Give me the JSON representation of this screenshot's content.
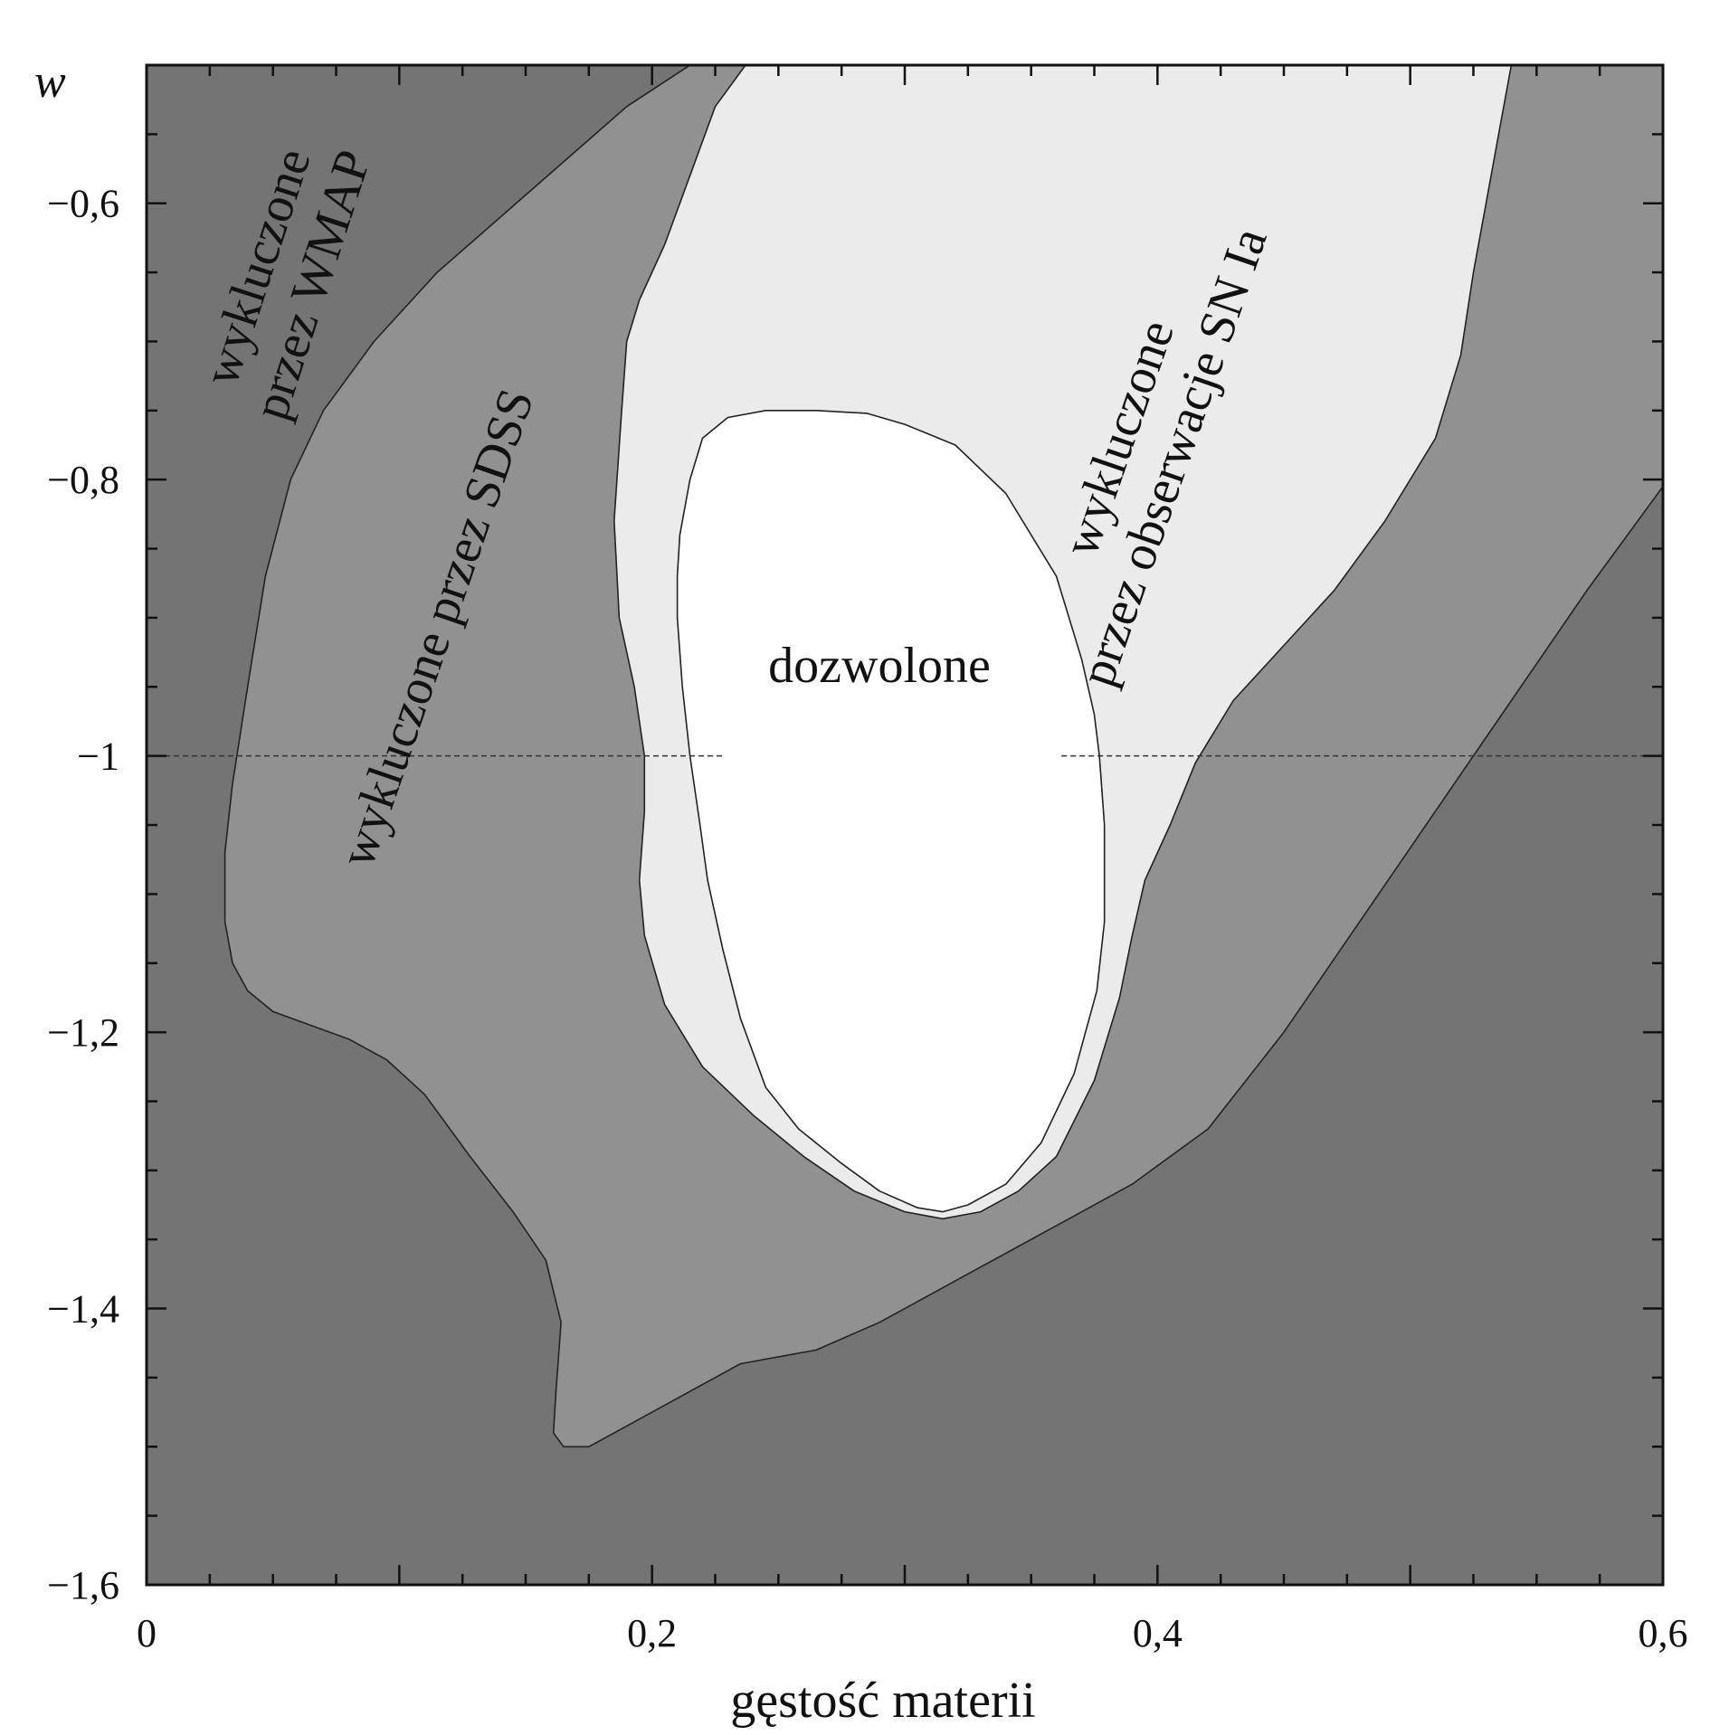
{
  "chart_data": {
    "type": "area",
    "title": "",
    "xlabel": "gęstość materii",
    "ylabel": "w",
    "xlim": [
      0,
      0.6
    ],
    "ylim": [
      -1.6,
      -0.5
    ],
    "grid": false,
    "reference_line": {
      "y": -1,
      "style": "dashed",
      "label": ""
    },
    "x_ticks": [
      {
        "value": 0,
        "label": "0"
      },
      {
        "value": 0.2,
        "label": "0,2"
      },
      {
        "value": 0.4,
        "label": "0,4"
      },
      {
        "value": 0.6,
        "label": "0,6"
      }
    ],
    "y_ticks": [
      {
        "value": -0.6,
        "label": "−0,6"
      },
      {
        "value": -0.8,
        "label": "−0,8"
      },
      {
        "value": -1.0,
        "label": "−1"
      },
      {
        "value": -1.2,
        "label": "−1,2"
      },
      {
        "value": -1.4,
        "label": "−1,4"
      },
      {
        "value": -1.6,
        "label": "−1,6"
      }
    ],
    "regions": [
      {
        "key": "sdss",
        "label": "wykluczone przez SDSS",
        "color": "#919191",
        "boundary": [
          [
            0.215,
            -0.5
          ],
          [
            0.19,
            -0.53
          ],
          [
            0.165,
            -0.57
          ],
          [
            0.14,
            -0.61
          ],
          [
            0.115,
            -0.65
          ],
          [
            0.09,
            -0.7
          ],
          [
            0.07,
            -0.75
          ],
          [
            0.057,
            -0.8
          ],
          [
            0.047,
            -0.87
          ],
          [
            0.04,
            -0.95
          ],
          [
            0.034,
            -1.02
          ],
          [
            0.031,
            -1.07
          ],
          [
            0.031,
            -1.12
          ],
          [
            0.034,
            -1.15
          ],
          [
            0.04,
            -1.17
          ],
          [
            0.05,
            -1.185
          ],
          [
            0.065,
            -1.195
          ],
          [
            0.08,
            -1.205
          ],
          [
            0.095,
            -1.22
          ],
          [
            0.11,
            -1.245
          ],
          [
            0.128,
            -1.29
          ],
          [
            0.145,
            -1.33
          ],
          [
            0.158,
            -1.365
          ],
          [
            0.164,
            -1.41
          ],
          [
            0.162,
            -1.46
          ],
          [
            0.161,
            -1.49
          ],
          [
            0.165,
            -1.5
          ],
          [
            0.175,
            -1.5
          ],
          [
            0.19,
            -1.485
          ],
          [
            0.21,
            -1.465
          ],
          [
            0.235,
            -1.44
          ],
          [
            0.265,
            -1.43
          ],
          [
            0.29,
            -1.41
          ],
          [
            0.31,
            -1.39
          ],
          [
            0.33,
            -1.37
          ],
          [
            0.36,
            -1.34
          ],
          [
            0.39,
            -1.31
          ],
          [
            0.42,
            -1.27
          ],
          [
            0.45,
            -1.2
          ],
          [
            0.48,
            -1.12
          ],
          [
            0.51,
            -1.04
          ],
          [
            0.54,
            -0.96
          ],
          [
            0.57,
            -0.88
          ],
          [
            0.6,
            -0.805
          ],
          [
            0.6,
            -0.5
          ]
        ]
      },
      {
        "key": "sn",
        "label": "wykluczone przez obserwacje SN Ia",
        "color": "#ebebeb",
        "boundary": [
          [
            0.237,
            -0.5
          ],
          [
            0.225,
            -0.53
          ],
          [
            0.215,
            -0.58
          ],
          [
            0.205,
            -0.63
          ],
          [
            0.195,
            -0.67
          ],
          [
            0.19,
            -0.7
          ],
          [
            0.188,
            -0.75
          ],
          [
            0.185,
            -0.83
          ],
          [
            0.187,
            -0.9
          ],
          [
            0.193,
            -0.95
          ],
          [
            0.197,
            -1.0
          ],
          [
            0.197,
            -1.04
          ],
          [
            0.195,
            -1.09
          ],
          [
            0.197,
            -1.13
          ],
          [
            0.205,
            -1.18
          ],
          [
            0.22,
            -1.225
          ],
          [
            0.24,
            -1.26
          ],
          [
            0.26,
            -1.29
          ],
          [
            0.28,
            -1.315
          ],
          [
            0.3,
            -1.33
          ],
          [
            0.315,
            -1.335
          ],
          [
            0.33,
            -1.33
          ],
          [
            0.345,
            -1.315
          ],
          [
            0.36,
            -1.29
          ],
          [
            0.375,
            -1.235
          ],
          [
            0.385,
            -1.175
          ],
          [
            0.39,
            -1.13
          ],
          [
            0.395,
            -1.09
          ],
          [
            0.405,
            -1.05
          ],
          [
            0.415,
            -1.005
          ],
          [
            0.43,
            -0.96
          ],
          [
            0.45,
            -0.92
          ],
          [
            0.47,
            -0.88
          ],
          [
            0.49,
            -0.83
          ],
          [
            0.51,
            -0.77
          ],
          [
            0.52,
            -0.71
          ],
          [
            0.525,
            -0.65
          ],
          [
            0.53,
            -0.6
          ],
          [
            0.535,
            -0.55
          ],
          [
            0.54,
            -0.5
          ]
        ]
      },
      {
        "key": "allowed",
        "label": "dozwolone",
        "color": "#ffffff",
        "boundary": [
          [
            0.22,
            -0.77
          ],
          [
            0.23,
            -0.755
          ],
          [
            0.245,
            -0.75
          ],
          [
            0.265,
            -0.75
          ],
          [
            0.285,
            -0.752
          ],
          [
            0.3,
            -0.76
          ],
          [
            0.32,
            -0.775
          ],
          [
            0.34,
            -0.81
          ],
          [
            0.36,
            -0.87
          ],
          [
            0.37,
            -0.93
          ],
          [
            0.375,
            -0.97
          ],
          [
            0.377,
            -1.0
          ],
          [
            0.379,
            -1.05
          ],
          [
            0.379,
            -1.12
          ],
          [
            0.376,
            -1.17
          ],
          [
            0.367,
            -1.23
          ],
          [
            0.354,
            -1.28
          ],
          [
            0.34,
            -1.31
          ],
          [
            0.325,
            -1.325
          ],
          [
            0.315,
            -1.33
          ],
          [
            0.305,
            -1.327
          ],
          [
            0.29,
            -1.315
          ],
          [
            0.275,
            -1.295
          ],
          [
            0.258,
            -1.27
          ],
          [
            0.245,
            -1.24
          ],
          [
            0.235,
            -1.19
          ],
          [
            0.228,
            -1.14
          ],
          [
            0.222,
            -1.09
          ],
          [
            0.219,
            -1.05
          ],
          [
            0.215,
            -1.0
          ],
          [
            0.212,
            -0.95
          ],
          [
            0.21,
            -0.9
          ],
          [
            0.21,
            -0.87
          ],
          [
            0.211,
            -0.84
          ],
          [
            0.215,
            -0.8
          ]
        ]
      }
    ],
    "background_region": {
      "key": "wmap",
      "label": "wykluczone przez WMAP",
      "color": "#747474"
    }
  },
  "labels": {
    "wmap_line1": "wykluczone",
    "wmap_line2": "przez WMAP",
    "sdss": "wykluczone przez SDSS",
    "sn_line1": "wykluczone",
    "sn_line2": "przez obserwacje SN Ia",
    "allowed": "dozwolone"
  }
}
